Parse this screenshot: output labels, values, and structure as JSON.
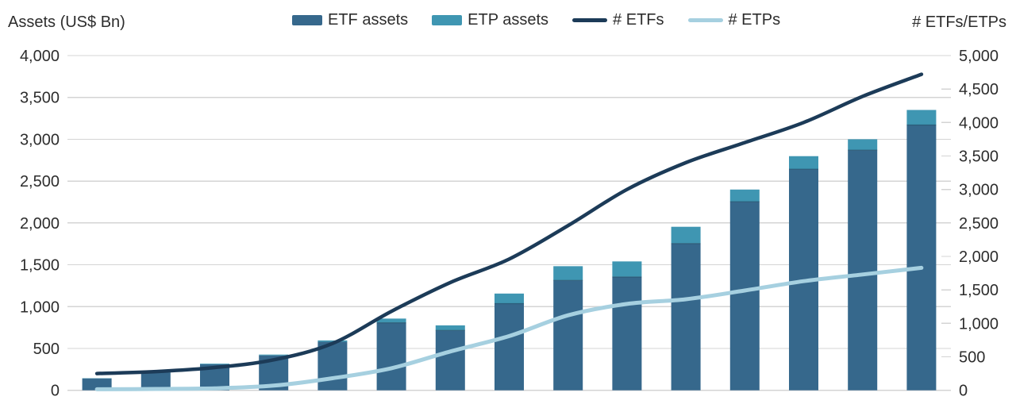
{
  "header": {
    "left_axis_title": "Assets (US$ Bn)",
    "right_axis_title": "# ETFs/ETPs"
  },
  "chart_data": {
    "type": "bar",
    "subtype": "stacked-bars-with-lines-combo",
    "title": "",
    "x_axis": {
      "labels_visible": false,
      "num_points": 15
    },
    "left_axis": {
      "title": "Assets (US$ Bn)",
      "min": 0,
      "max": 4000,
      "step": 500,
      "ticks": [
        "4,000",
        "3,500",
        "3,000",
        "2,500",
        "2,000",
        "1,500",
        "1,000",
        "500",
        "0"
      ]
    },
    "right_axis": {
      "title": "# ETFs/ETPs",
      "min": 0,
      "max": 5000,
      "step": 500,
      "ticks": [
        "5,000",
        "4,500",
        "4,000",
        "3,500",
        "3,000",
        "2,500",
        "2,000",
        "1,500",
        "1,000",
        "500",
        "0"
      ]
    },
    "grid": "horizontal",
    "legend_position": "top",
    "bar_stacked": true,
    "series": [
      {
        "name": "ETF assets",
        "type": "bar",
        "axis": "left",
        "color": "#36688c",
        "values": [
          142,
          212,
          310,
          417,
          580,
          807,
          716,
          1036,
          1313,
          1355,
          1754,
          2254,
          2643,
          2870,
          3170
        ]
      },
      {
        "name": "ETP assets",
        "type": "bar",
        "axis": "left",
        "color": "#3f96b2",
        "values": [
          3,
          6,
          8,
          10,
          16,
          50,
          60,
          120,
          170,
          185,
          200,
          145,
          155,
          130,
          180
        ]
      },
      {
        "name": "# ETFs",
        "type": "line",
        "axis": "right",
        "color": "#1c3b58",
        "values": [
          250,
          280,
          340,
          455,
          700,
          1180,
          1610,
          1960,
          2460,
          3000,
          3400,
          3700,
          4000,
          4390,
          4720
        ]
      },
      {
        "name": "# ETPs",
        "type": "line",
        "axis": "right",
        "color": "#a6d0e0",
        "values": [
          15,
          20,
          30,
          70,
          180,
          330,
          580,
          810,
          1120,
          1290,
          1360,
          1490,
          1630,
          1730,
          1830
        ]
      }
    ],
    "colors": {
      "grid": "#d4d4d4",
      "text": "#2d2d2d",
      "background": "#ffffff"
    }
  }
}
